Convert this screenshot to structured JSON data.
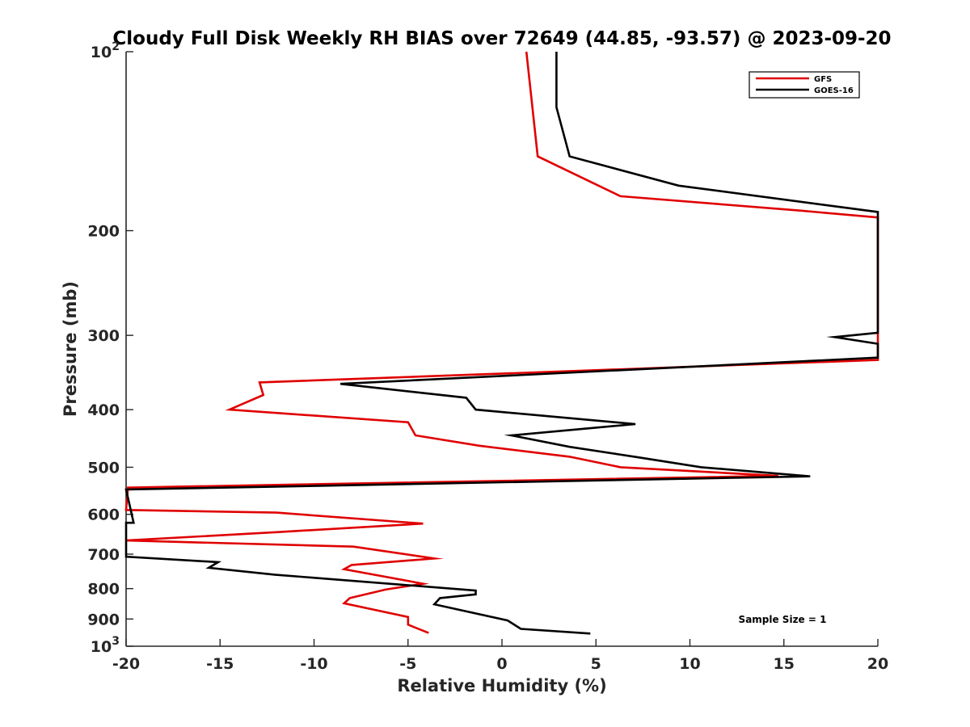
{
  "chart_data": {
    "type": "line",
    "title": "Cloudy Full Disk Weekly RH BIAS over 72649 (44.85, -93.57) @ 2023-09-20",
    "xlabel": "Relative Humidity (%)",
    "ylabel": "Pressure (mb)",
    "xlim": [
      -20,
      20
    ],
    "ylim": [
      100,
      1000
    ],
    "y_scale": "log",
    "y_reversed": true,
    "x_ticks": [
      "-20",
      "-15",
      "-10",
      "-5",
      "0",
      "5",
      "10",
      "15",
      "20"
    ],
    "y_ticks": [
      {
        "value": 100,
        "label": "10",
        "sup": "2"
      },
      {
        "value": 200,
        "label": "200",
        "sup": ""
      },
      {
        "value": 300,
        "label": "300",
        "sup": ""
      },
      {
        "value": 400,
        "label": "400",
        "sup": ""
      },
      {
        "value": 500,
        "label": "500",
        "sup": ""
      },
      {
        "value": 600,
        "label": "600",
        "sup": ""
      },
      {
        "value": 700,
        "label": "700",
        "sup": ""
      },
      {
        "value": 800,
        "label": "800",
        "sup": ""
      },
      {
        "value": 900,
        "label": "900",
        "sup": ""
      },
      {
        "value": 1000,
        "label": "10",
        "sup": "3"
      }
    ],
    "grid": false,
    "legend_position": "top-right",
    "series": [
      {
        "name": "GFS",
        "color": "#e00000",
        "points": [
          [
            1.3,
            100
          ],
          [
            1.9,
            150
          ],
          [
            6.3,
            175
          ],
          [
            15.8,
            185
          ],
          [
            20,
            190
          ],
          [
            20,
            330
          ],
          [
            -12.9,
            360
          ],
          [
            -12.7,
            378
          ],
          [
            -14.5,
            400
          ],
          [
            -5,
            420
          ],
          [
            -4.6,
            442
          ],
          [
            -1.2,
            460
          ],
          [
            3.6,
            480
          ],
          [
            6.3,
            500
          ],
          [
            14.7,
            517
          ],
          [
            -19.9,
            541
          ],
          [
            -20,
            590
          ],
          [
            -12,
            596
          ],
          [
            -4.2,
            622
          ],
          [
            -12,
            643
          ],
          [
            -20,
            664
          ],
          [
            -7.9,
            680
          ],
          [
            -3.6,
            712
          ],
          [
            -8,
            730
          ],
          [
            -8.4,
            742
          ],
          [
            -4.2,
            785
          ],
          [
            -6.2,
            803
          ],
          [
            -8.1,
            830
          ],
          [
            -8.4,
            847
          ],
          [
            -5,
            893
          ],
          [
            -5,
            920
          ],
          [
            -3.9,
            950
          ]
        ]
      },
      {
        "name": "GOES-16",
        "color": "#000000",
        "points": [
          [
            2.9,
            100
          ],
          [
            2.9,
            124
          ],
          [
            3.6,
            150
          ],
          [
            9.4,
            168
          ],
          [
            20,
            186
          ],
          [
            20,
            297
          ],
          [
            17.7,
            302
          ],
          [
            20,
            310
          ],
          [
            20,
            327
          ],
          [
            -8.6,
            362
          ],
          [
            -1.9,
            382
          ],
          [
            -1.4,
            400
          ],
          [
            7.1,
            423
          ],
          [
            0.5,
            442
          ],
          [
            3.6,
            462
          ],
          [
            7.4,
            482
          ],
          [
            10.6,
            500
          ],
          [
            16.4,
            518
          ],
          [
            -20,
            545
          ],
          [
            -19.6,
            620
          ],
          [
            -20,
            620
          ],
          [
            -20,
            700
          ],
          [
            -20,
            707
          ],
          [
            -15.1,
            722
          ],
          [
            -15.6,
            738
          ],
          [
            -12.1,
            758
          ],
          [
            -1.4,
            806
          ],
          [
            -1.4,
            818
          ],
          [
            -3.3,
            830
          ],
          [
            -3.6,
            850
          ],
          [
            0.3,
            905
          ],
          [
            1.0,
            935
          ],
          [
            4.7,
            952
          ]
        ]
      }
    ],
    "annotations": [
      "Sample Size = 1"
    ]
  }
}
